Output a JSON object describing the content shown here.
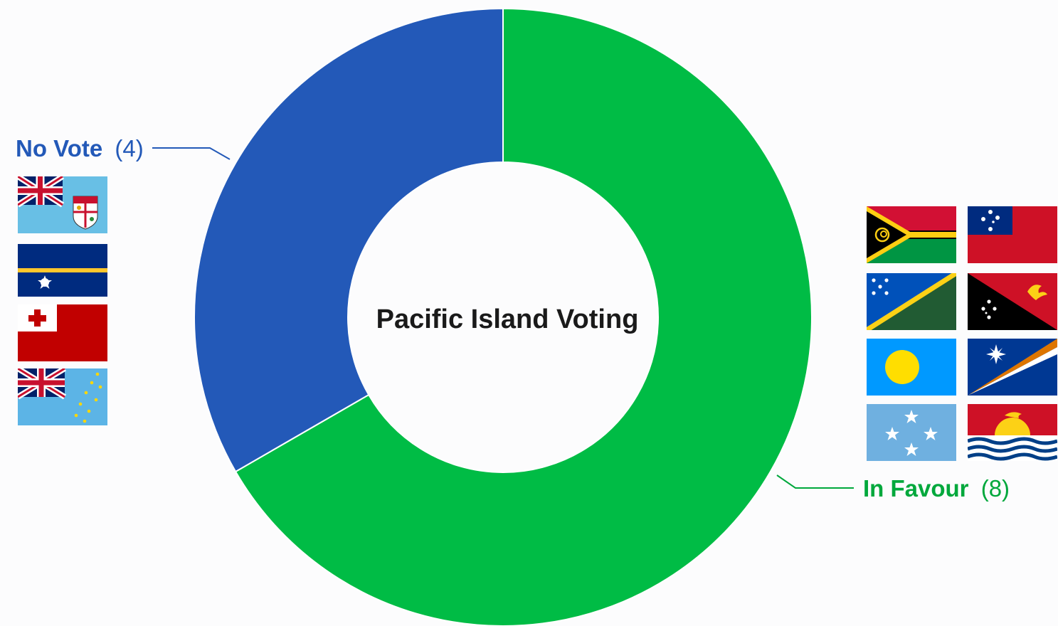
{
  "chart_data": {
    "type": "pie",
    "title": "Pacific Island Voting",
    "labels": [
      "In Favour",
      "No Vote"
    ],
    "values": [
      8,
      4
    ],
    "colors": [
      "#00bc45",
      "#2359b8"
    ],
    "count_labels": [
      "(8)",
      "(4)"
    ],
    "start_angle_deg": 0,
    "direction": "clockwise"
  },
  "groups": {
    "no_vote": {
      "label": "No Vote",
      "count_text": "(4)",
      "color": "#2359b8",
      "flags": [
        "fiji-flag-icon",
        "nauru-flag-icon",
        "tonga-flag-icon",
        "tuvalu-flag-icon"
      ]
    },
    "in_favour": {
      "label": "In Favour",
      "count_text": "(8)",
      "color": "#00a83c",
      "flags": [
        "vanuatu-flag-icon",
        "samoa-flag-icon",
        "solomon-islands-flag-icon",
        "papua-new-guinea-flag-icon",
        "palau-flag-icon",
        "marshall-islands-flag-icon",
        "micronesia-flag-icon",
        "kiribati-flag-icon"
      ]
    }
  }
}
